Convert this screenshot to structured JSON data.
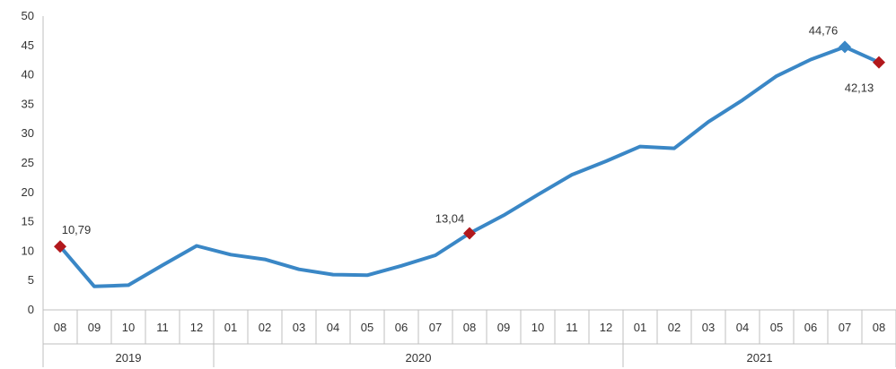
{
  "chart_data": {
    "type": "line",
    "title": "",
    "xlabel": "",
    "ylabel": "",
    "ylim": [
      0,
      50
    ],
    "yticks": [
      "0",
      "5",
      "10",
      "15",
      "20",
      "25",
      "30",
      "35",
      "40",
      "45",
      "50"
    ],
    "grid": false,
    "categories": [
      "08",
      "09",
      "10",
      "11",
      "12",
      "01",
      "02",
      "03",
      "04",
      "05",
      "06",
      "07",
      "08",
      "09",
      "10",
      "11",
      "12",
      "01",
      "02",
      "03",
      "04",
      "05",
      "06",
      "07",
      "08"
    ],
    "year_groups": [
      {
        "label": "2019",
        "start": 0,
        "end": 4
      },
      {
        "label": "2020",
        "start": 5,
        "end": 16
      },
      {
        "label": "2021",
        "start": 17,
        "end": 24
      }
    ],
    "series": [
      {
        "color": "#3a87c6",
        "values": [
          10.79,
          4.0,
          4.2,
          7.6,
          10.9,
          9.4,
          8.6,
          6.9,
          6.0,
          5.9,
          7.5,
          9.3,
          13.04,
          16.1,
          19.6,
          23.0,
          25.3,
          27.8,
          27.5,
          32.0,
          35.7,
          39.8,
          42.6,
          44.76,
          42.13
        ]
      }
    ],
    "markers": [
      {
        "index": 0,
        "label": "10,79",
        "shape": "diamond",
        "color": "#b2181c"
      },
      {
        "index": 12,
        "label": "13,04",
        "shape": "diamond",
        "color": "#b2181c"
      },
      {
        "index": 23,
        "label": "44,76",
        "shape": "diamond",
        "color": "#3a87c6"
      },
      {
        "index": 24,
        "label": "42,13",
        "shape": "diamond",
        "color": "#b2181c"
      }
    ]
  }
}
